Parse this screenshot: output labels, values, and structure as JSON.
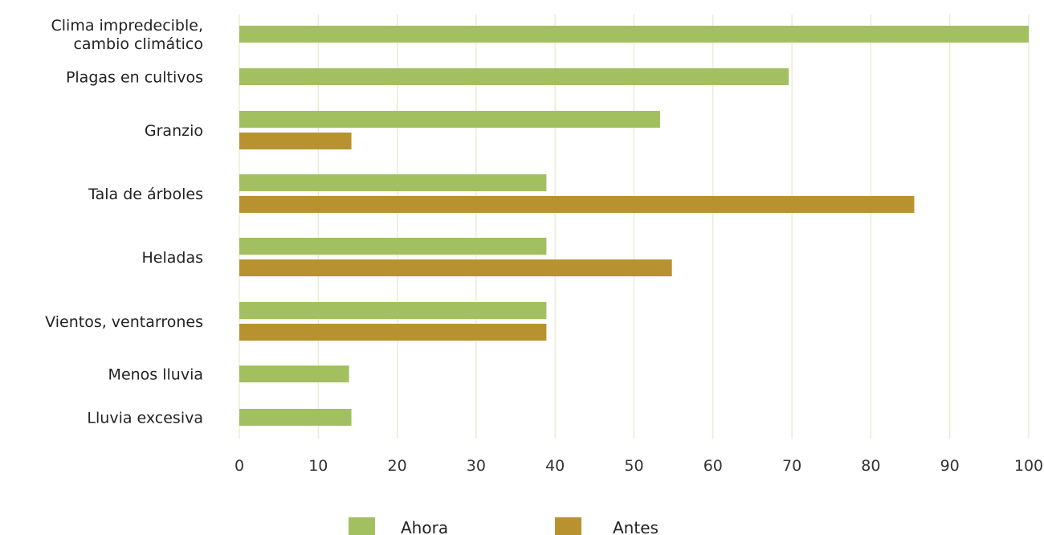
{
  "chart_data": {
    "type": "bar",
    "orientation": "horizontal",
    "title": "",
    "xlabel": "",
    "ylabel": "",
    "xlim": [
      0,
      100
    ],
    "xticks": [
      0,
      10,
      20,
      30,
      40,
      50,
      60,
      70,
      80,
      90,
      100
    ],
    "grid": "vertical",
    "legend_position": "bottom",
    "categories": [
      "Clima impredecible,\ncambio climático",
      "Plagas en cultivos",
      "Granzio",
      "Tala de árboles",
      "Heladas",
      "Vientos, ventarrones",
      "Menos lluvia",
      "Lluvia excesiva"
    ],
    "series": [
      {
        "name": "Ahora",
        "color": "#a3c061",
        "values": [
          100,
          69.6,
          53.3,
          38.9,
          38.9,
          38.9,
          13.9,
          14.2
        ]
      },
      {
        "name": "Antes",
        "color": "#b8922e",
        "values": [
          null,
          null,
          14.2,
          85.5,
          54.8,
          38.9,
          null,
          null
        ]
      }
    ]
  }
}
